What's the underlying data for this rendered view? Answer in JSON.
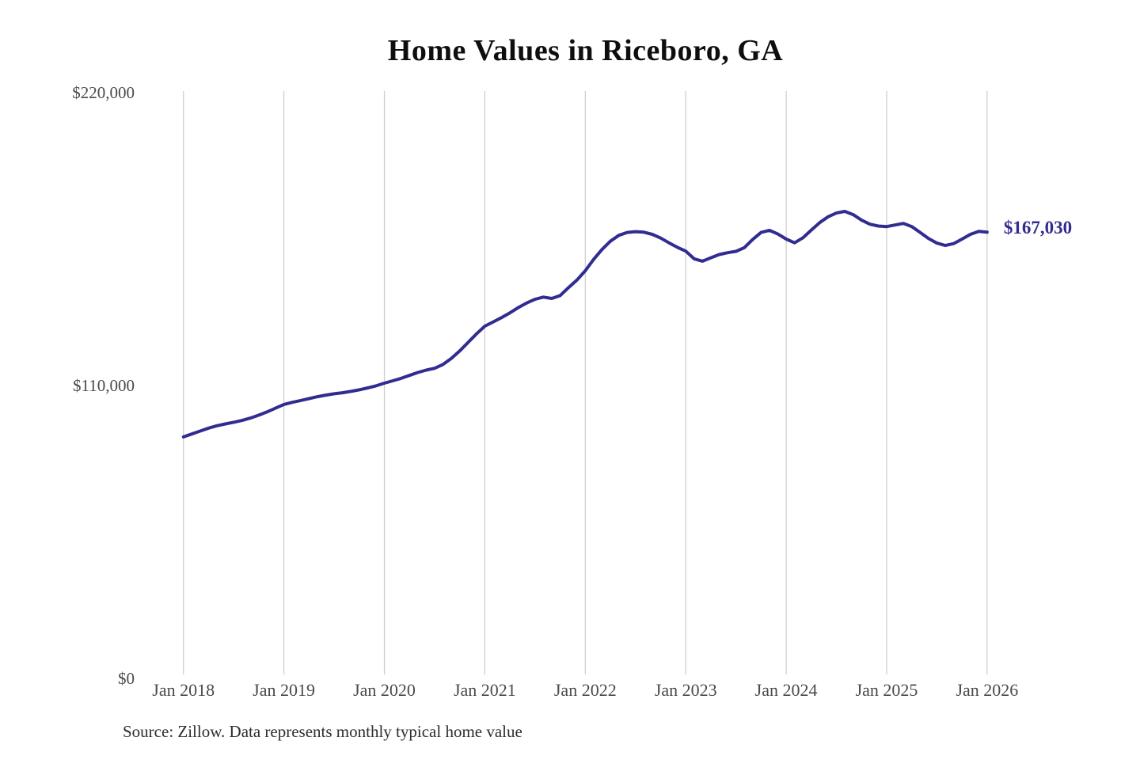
{
  "chart_data": {
    "type": "line",
    "title": "Home Values in Riceboro, GA",
    "source_note": "Source: Zillow. Data represents monthly typical home value",
    "x_tick_labels": [
      "Jan 2018",
      "Jan 2019",
      "Jan 2020",
      "Jan 2021",
      "Jan 2022",
      "Jan 2023",
      "Jan 2024",
      "Jan 2025",
      "Jan 2026"
    ],
    "y_ticks": [
      {
        "label": "$220,000",
        "value": 220000
      },
      {
        "label": "$110,000",
        "value": 110000
      },
      {
        "label": "$0",
        "value": 0
      }
    ],
    "ylim": [
      0,
      220000
    ],
    "grid": "vertical-only",
    "grid_color": "#cccccc",
    "accent_color": "#312c90",
    "legend": "none",
    "annotation": {
      "label": "$167,030",
      "value": 167030
    },
    "series": [
      {
        "name": "Monthly typical home value",
        "color": "#312c90",
        "start": "Jan 2018",
        "interval": "month",
        "values": [
          90100,
          91200,
          92300,
          93400,
          94300,
          95000,
          95600,
          96300,
          97200,
          98300,
          99500,
          100900,
          102300,
          103100,
          103800,
          104500,
          105200,
          105800,
          106300,
          106700,
          107200,
          107800,
          108500,
          109300,
          110300,
          111200,
          112100,
          113200,
          114300,
          115200,
          115900,
          117300,
          119600,
          122400,
          125600,
          128800,
          131700,
          133300,
          134900,
          136700,
          138700,
          140400,
          141800,
          142600,
          142100,
          143200,
          146200,
          149000,
          152500,
          156800,
          160500,
          163600,
          165800,
          166900,
          167200,
          167000,
          166200,
          164800,
          163000,
          161300,
          159900,
          157000,
          156100,
          157400,
          158600,
          159300,
          159800,
          161200,
          164300,
          166900,
          167700,
          166300,
          164400,
          163000,
          164900,
          167800,
          170600,
          172800,
          174200,
          174800,
          173600,
          171500,
          170000,
          169300,
          169100,
          169700,
          170300,
          169100,
          166900,
          164600,
          162900,
          162000,
          162700,
          164400,
          166200,
          167300,
          167030
        ]
      }
    ]
  }
}
